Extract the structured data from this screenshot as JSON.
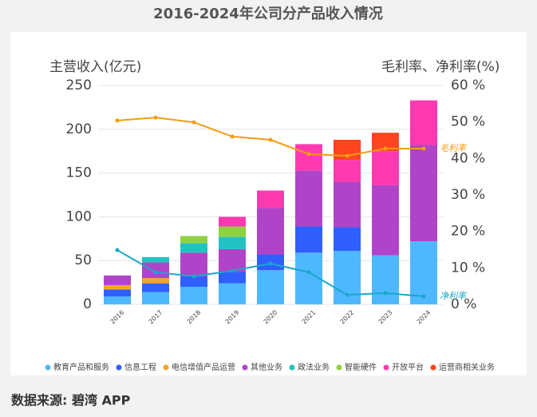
{
  "chart_data": {
    "type": "bar",
    "title": "2016-2024年公司分产品收入情况",
    "y_label": "主营收入(亿元)",
    "y2_label": "毛利率、净利率(%)",
    "source": "数据来源: 碧湾 APP",
    "categories": [
      "2016",
      "2017",
      "2018",
      "2019",
      "2020",
      "2021",
      "2022",
      "2023",
      "2024"
    ],
    "ylim": [
      0,
      250
    ],
    "yticks": [
      0,
      50,
      100,
      150,
      200,
      250
    ],
    "y2lim": [
      0,
      60
    ],
    "y2ticks": [
      {
        "value": 0,
        "label": "0 %"
      },
      {
        "value": 10,
        "label": "10 %"
      },
      {
        "value": 20,
        "label": "20 %"
      },
      {
        "value": 30,
        "label": "30 %"
      },
      {
        "value": 40,
        "label": "40 %"
      },
      {
        "value": 50,
        "label": "50 %"
      },
      {
        "value": 60,
        "label": "60 %"
      }
    ],
    "grid": true,
    "legend": "bottom",
    "series": [
      {
        "name": "教育产品和服务",
        "color": "#4db8ff",
        "type": "bar",
        "values": [
          9,
          14,
          20,
          24,
          39,
          59,
          61,
          56,
          72
        ]
      },
      {
        "name": "信息工程",
        "color": "#2f5fff",
        "type": "bar",
        "values": [
          8,
          10,
          12,
          13,
          18,
          30,
          27,
          null,
          null
        ]
      },
      {
        "name": "电信增值产品运营",
        "color": "#f5a623",
        "type": "bar",
        "values": [
          5,
          6,
          null,
          null,
          null,
          null,
          null,
          null,
          null
        ]
      },
      {
        "name": "其他业务",
        "color": "#b044c8",
        "type": "bar",
        "values": [
          11,
          18,
          27,
          26,
          53,
          64,
          52,
          80,
          110
        ]
      },
      {
        "name": "政法业务",
        "color": "#22c2c2",
        "type": "bar",
        "values": [
          null,
          6,
          11,
          14,
          null,
          null,
          null,
          null,
          null
        ]
      },
      {
        "name": "智能硬件",
        "color": "#8fd13f",
        "type": "bar",
        "values": [
          null,
          null,
          8,
          12,
          null,
          null,
          null,
          null,
          null
        ]
      },
      {
        "name": "开放平台",
        "color": "#ff3ab0",
        "type": "bar",
        "values": [
          null,
          null,
          null,
          11,
          20,
          30,
          25,
          39,
          51
        ]
      },
      {
        "name": "运营商相关业务",
        "color": "#ff4420",
        "type": "bar",
        "values": [
          null,
          null,
          null,
          null,
          null,
          null,
          23,
          21,
          null
        ]
      },
      {
        "name": "毛利率",
        "color": "#f39c12",
        "type": "line",
        "axis": "y2",
        "values": [
          50.4,
          51.2,
          49.9,
          46,
          45.1,
          41.2,
          40.7,
          42.7,
          42.7
        ]
      },
      {
        "name": "净利率",
        "color": "#1aa7c9",
        "type": "line",
        "axis": "y2",
        "values": [
          14.9,
          8.8,
          7.7,
          9.2,
          11.2,
          8.8,
          2.6,
          3.1,
          2.2
        ]
      }
    ]
  }
}
